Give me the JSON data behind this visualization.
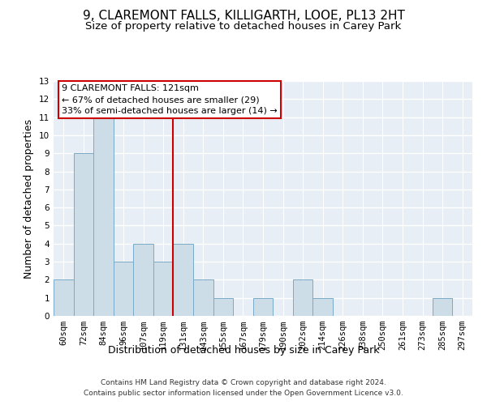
{
  "title": "9, CLAREMONT FALLS, KILLIGARTH, LOOE, PL13 2HT",
  "subtitle": "Size of property relative to detached houses in Carey Park",
  "xlabel": "Distribution of detached houses by size in Carey Park",
  "ylabel": "Number of detached properties",
  "categories": [
    "60sqm",
    "72sqm",
    "84sqm",
    "96sqm",
    "107sqm",
    "119sqm",
    "131sqm",
    "143sqm",
    "155sqm",
    "167sqm",
    "179sqm",
    "190sqm",
    "202sqm",
    "214sqm",
    "226sqm",
    "238sqm",
    "250sqm",
    "261sqm",
    "273sqm",
    "285sqm",
    "297sqm"
  ],
  "values": [
    2,
    9,
    11,
    3,
    4,
    3,
    4,
    2,
    1,
    0,
    1,
    0,
    2,
    1,
    0,
    0,
    0,
    0,
    0,
    1,
    0
  ],
  "bar_color": "#ccdde8",
  "bar_edgecolor": "#7aaac8",
  "marker_label": "9 CLAREMONT FALLS: 121sqm",
  "annotation_line1": "← 67% of detached houses are smaller (29)",
  "annotation_line2": "33% of semi-detached houses are larger (14) →",
  "marker_color": "#cc0000",
  "ylim": [
    0,
    13
  ],
  "yticks": [
    0,
    1,
    2,
    3,
    4,
    5,
    6,
    7,
    8,
    9,
    10,
    11,
    12,
    13
  ],
  "footer1": "Contains HM Land Registry data © Crown copyright and database right 2024.",
  "footer2": "Contains public sector information licensed under the Open Government Licence v3.0.",
  "bg_color": "#e8eef5",
  "grid_color": "#ffffff",
  "title_fontsize": 11,
  "subtitle_fontsize": 9.5,
  "axis_label_fontsize": 9,
  "tick_fontsize": 7.5,
  "annotation_fontsize": 8
}
